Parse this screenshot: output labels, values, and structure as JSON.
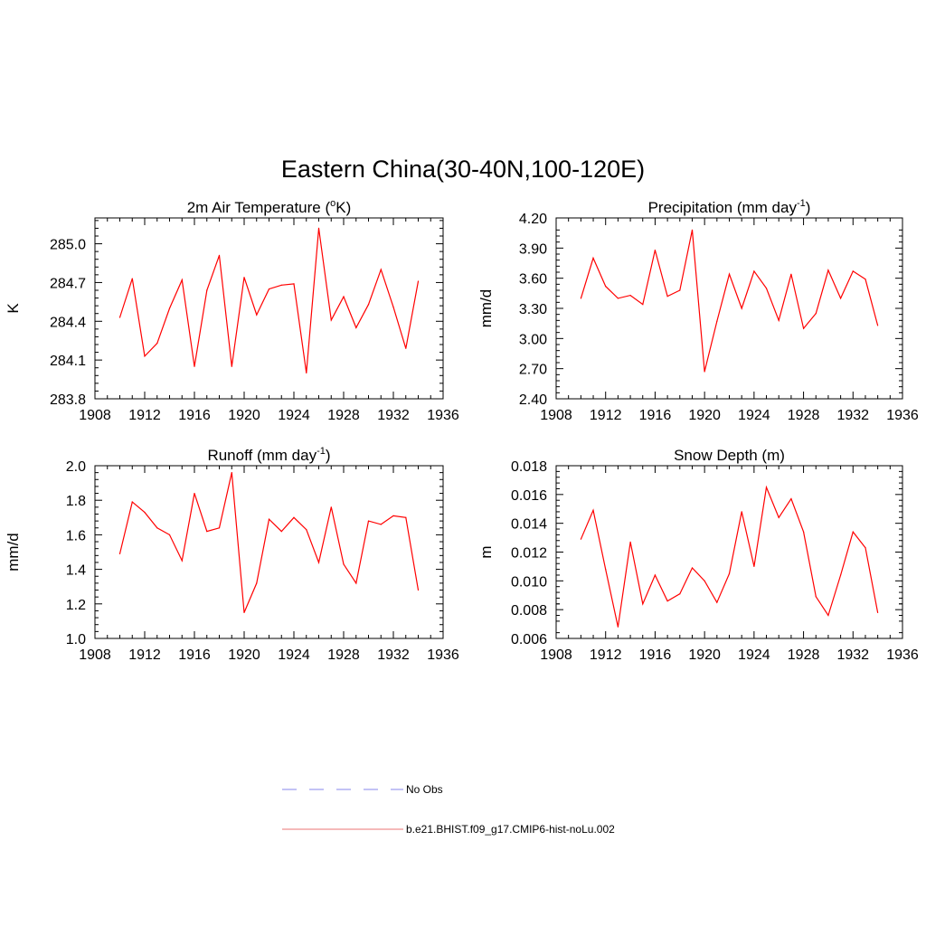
{
  "figure": {
    "title": "Eastern China(30-40N,100-120E)"
  },
  "legend": {
    "items": [
      {
        "label": "No Obs",
        "color": "#9f9fef",
        "dashed": true
      },
      {
        "label": "b.e21.BHIST.f09_g17.CMIP6-hist-noLu.002",
        "color": "#ef8f8f",
        "dashed": false
      }
    ]
  },
  "chart_data": [
    {
      "type": "line",
      "title_main": "2m Air Temperature (",
      "title_sup": "o",
      "title_rest": "K)",
      "ylabel": "K",
      "xlabel": "",
      "xlim": [
        1908,
        1936
      ],
      "ylim": [
        283.8,
        285.2
      ],
      "xticks": [
        "1908",
        "1912",
        "1916",
        "1920",
        "1924",
        "1928",
        "1932",
        "1936"
      ],
      "yticks": [
        "283.8",
        "284.1",
        "284.4",
        "284.7",
        "285.0"
      ],
      "line_color": "#ff0000",
      "x": [
        1910,
        1911,
        1912,
        1913,
        1914,
        1915,
        1916,
        1917,
        1918,
        1919,
        1920,
        1921,
        1922,
        1923,
        1924,
        1925,
        1926,
        1927,
        1928,
        1929,
        1930,
        1931,
        1932,
        1933,
        1934
      ],
      "y": [
        284.43,
        284.73,
        284.13,
        284.23,
        284.5,
        284.72,
        284.05,
        284.64,
        284.91,
        284.05,
        284.74,
        284.45,
        284.65,
        284.68,
        284.69,
        284.0,
        285.12,
        284.41,
        284.59,
        284.35,
        284.53,
        284.8,
        284.51,
        284.19,
        284.71
      ]
    },
    {
      "type": "line",
      "title_main": "Precipitation (mm day",
      "title_sup": "-1",
      "title_rest": ")",
      "ylabel": "mm/d",
      "xlabel": "",
      "xlim": [
        1908,
        1936
      ],
      "ylim": [
        2.4,
        4.2
      ],
      "xticks": [
        "1908",
        "1912",
        "1916",
        "1920",
        "1924",
        "1928",
        "1932",
        "1936"
      ],
      "yticks": [
        "2.40",
        "2.70",
        "3.00",
        "3.30",
        "3.60",
        "3.90",
        "4.20"
      ],
      "line_color": "#ff0000",
      "x": [
        1910,
        1911,
        1912,
        1913,
        1914,
        1915,
        1916,
        1917,
        1918,
        1919,
        1920,
        1921,
        1922,
        1923,
        1924,
        1925,
        1926,
        1927,
        1928,
        1929,
        1930,
        1931,
        1932,
        1933,
        1934
      ],
      "y": [
        3.4,
        3.8,
        3.52,
        3.4,
        3.43,
        3.34,
        3.88,
        3.42,
        3.48,
        4.08,
        2.67,
        3.17,
        3.64,
        3.3,
        3.67,
        3.5,
        3.18,
        3.64,
        3.1,
        3.25,
        3.68,
        3.4,
        3.67,
        3.59,
        3.13
      ]
    },
    {
      "type": "line",
      "title_main": "Runoff (mm day",
      "title_sup": "-1",
      "title_rest": ")",
      "ylabel": "mm/d",
      "xlabel": "",
      "xlim": [
        1908,
        1936
      ],
      "ylim": [
        1.0,
        2.0
      ],
      "xticks": [
        "1908",
        "1912",
        "1916",
        "1920",
        "1924",
        "1928",
        "1932",
        "1936"
      ],
      "yticks": [
        "1.0",
        "1.2",
        "1.4",
        "1.6",
        "1.8",
        "2.0"
      ],
      "line_color": "#ff0000",
      "x": [
        1910,
        1911,
        1912,
        1913,
        1914,
        1915,
        1916,
        1917,
        1918,
        1919,
        1920,
        1921,
        1922,
        1923,
        1924,
        1925,
        1926,
        1927,
        1928,
        1929,
        1930,
        1931,
        1932,
        1933,
        1934
      ],
      "y": [
        1.49,
        1.79,
        1.73,
        1.64,
        1.6,
        1.45,
        1.84,
        1.62,
        1.64,
        1.96,
        1.15,
        1.32,
        1.69,
        1.62,
        1.7,
        1.63,
        1.44,
        1.76,
        1.43,
        1.32,
        1.68,
        1.66,
        1.71,
        1.7,
        1.28
      ]
    },
    {
      "type": "line",
      "title_main": "Snow Depth (m)",
      "title_sup": "",
      "title_rest": "",
      "ylabel": "m",
      "xlabel": "",
      "xlim": [
        1908,
        1936
      ],
      "ylim": [
        0.006,
        0.018
      ],
      "xticks": [
        "1908",
        "1912",
        "1916",
        "1920",
        "1924",
        "1928",
        "1932",
        "1936"
      ],
      "yticks": [
        "0.006",
        "0.008",
        "0.010",
        "0.012",
        "0.014",
        "0.016",
        "0.018"
      ],
      "line_color": "#ff0000",
      "x": [
        1910,
        1911,
        1912,
        1913,
        1914,
        1915,
        1916,
        1917,
        1918,
        1919,
        1920,
        1921,
        1922,
        1923,
        1924,
        1925,
        1926,
        1927,
        1928,
        1929,
        1930,
        1931,
        1932,
        1933,
        1934
      ],
      "y": [
        0.0129,
        0.0149,
        0.0108,
        0.0068,
        0.0127,
        0.0084,
        0.0104,
        0.0086,
        0.0091,
        0.0109,
        0.01,
        0.0085,
        0.0105,
        0.0148,
        0.011,
        0.0165,
        0.0144,
        0.0157,
        0.0134,
        0.0089,
        0.0076,
        0.0104,
        0.0134,
        0.0123,
        0.0078
      ]
    }
  ]
}
